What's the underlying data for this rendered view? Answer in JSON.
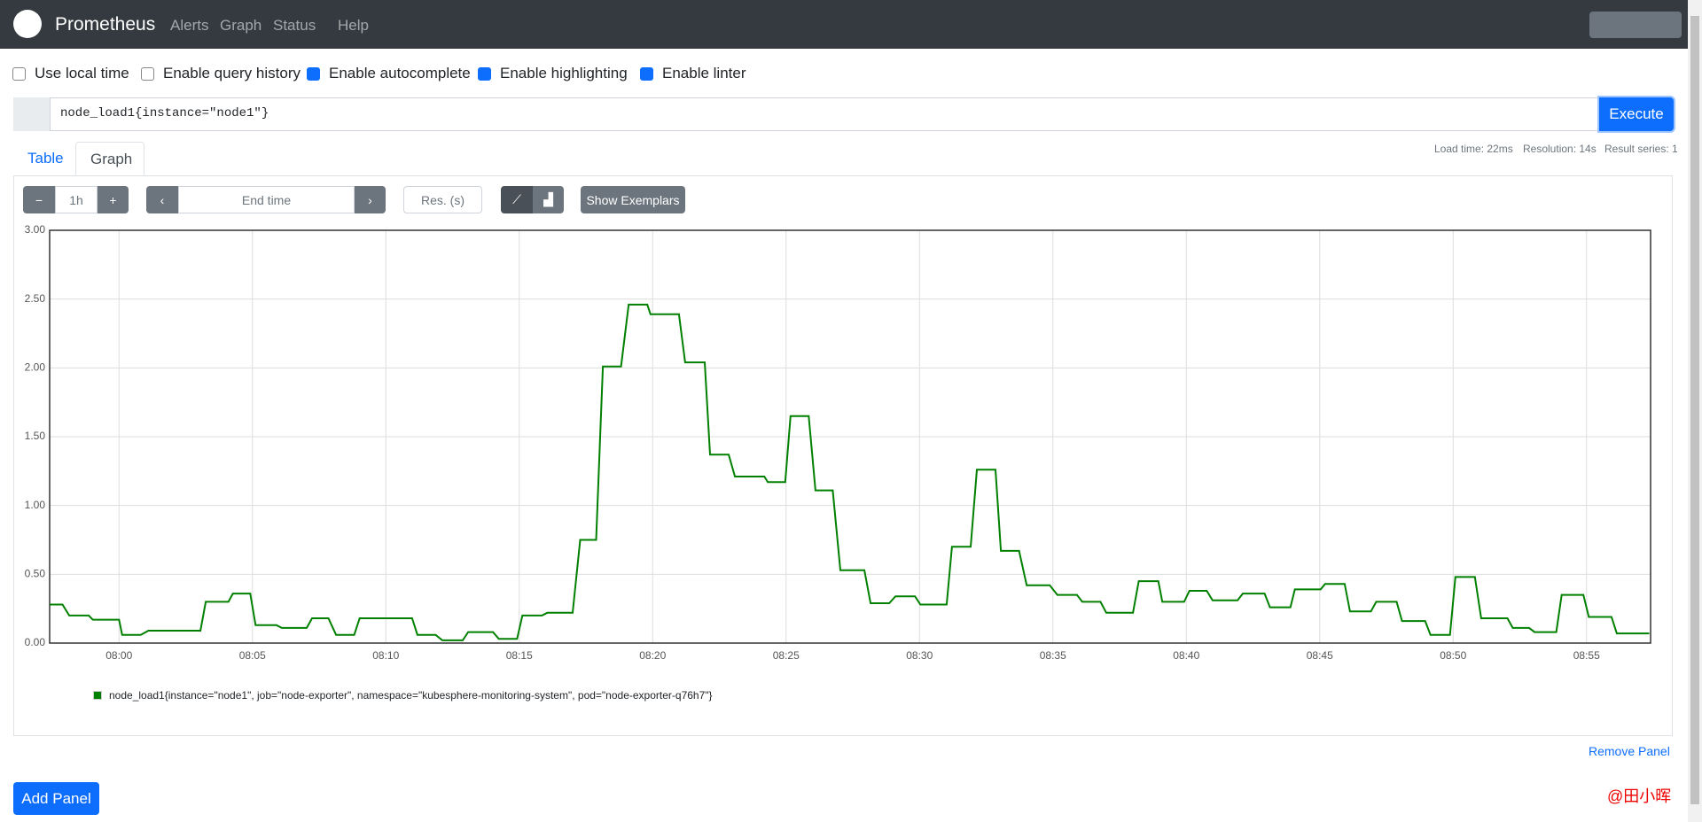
{
  "navbar": {
    "brand": "Prometheus",
    "links": [
      "Alerts",
      "Graph",
      "Status",
      "Help"
    ]
  },
  "options": [
    {
      "label": "Use local time",
      "checked": false
    },
    {
      "label": "Enable query history",
      "checked": false
    },
    {
      "label": "Enable autocomplete",
      "checked": true
    },
    {
      "label": "Enable highlighting",
      "checked": true
    },
    {
      "label": "Enable linter",
      "checked": true
    }
  ],
  "query": "node_load1{instance=\"node1\"}",
  "execute": "Execute",
  "tabs": [
    "Table",
    "Graph"
  ],
  "stats": [
    "Load time: 22ms",
    "Resolution: 14s",
    "Result series: 1"
  ],
  "controls": {
    "range": "1h",
    "end_time": "End time",
    "resolution": "Res. (s)",
    "exemplars": "Show Exemplars"
  },
  "chart_data": {
    "type": "line",
    "x": [
      "07:57:24",
      "07:57:53",
      "07:58:08",
      "07:58:52",
      "07:59:01",
      "08:00:00",
      "08:00:07",
      "08:00:49",
      "08:01:06",
      "08:03:03",
      "08:03:15",
      "08:04:06",
      "08:04:16",
      "08:04:55",
      "08:05:07",
      "08:05:54",
      "08:06:06",
      "08:07:02",
      "08:07:14",
      "08:07:51",
      "08:08:08",
      "08:08:49",
      "08:09:01",
      "08:10:59",
      "08:11:11",
      "08:11:52",
      "08:12:07",
      "08:12:53",
      "08:13:05",
      "08:14:01",
      "08:14:14",
      "08:14:55",
      "08:15:07",
      "08:15:51",
      "08:16:03",
      "08:17:00",
      "08:17:17",
      "08:17:53",
      "08:18:08",
      "08:18:49",
      "08:19:06",
      "08:19:48",
      "08:19:55",
      "08:20:59",
      "08:21:13",
      "08:21:57",
      "08:22:09",
      "08:22:51",
      "08:23:05",
      "08:24:11",
      "08:24:19",
      "08:24:58",
      "08:25:10",
      "08:25:51",
      "08:26:06",
      "08:26:45",
      "08:27:02",
      "08:27:56",
      "08:28:10",
      "08:28:52",
      "08:29:06",
      "08:29:50",
      "08:30:02",
      "08:31:01",
      "08:31:13",
      "08:31:55",
      "08:32:09",
      "08:32:51",
      "08:33:03",
      "08:33:44",
      "08:34:01",
      "08:34:53",
      "08:35:10",
      "08:35:54",
      "08:36:06",
      "08:36:47",
      "08:37:00",
      "08:38:00",
      "08:38:13",
      "08:38:57",
      "08:39:06",
      "08:39:55",
      "08:40:07",
      "08:40:46",
      "08:40:59",
      "08:41:55",
      "08:42:07",
      "08:42:56",
      "08:43:08",
      "08:43:54",
      "08:44:04",
      "08:45:02",
      "08:45:12",
      "08:45:56",
      "08:46:08",
      "08:46:55",
      "08:47:07",
      "08:47:53",
      "08:48:05",
      "08:48:57",
      "08:49:09",
      "08:49:53",
      "08:50:05",
      "08:50:49",
      "08:51:03",
      "08:52:02",
      "08:52:14",
      "08:52:51",
      "08:53:03",
      "08:53:52",
      "08:54:04",
      "08:54:53",
      "08:55:05",
      "08:55:56",
      "08:56:08",
      "08:57:21"
    ],
    "series": [
      {
        "name": "node_load1{instance=\"node1\", job=\"node-exporter\", namespace=\"kubesphere-monitoring-system\", pod=\"node-exporter-q76h7\"}",
        "color": "#008000",
        "values": [
          0.28,
          0.28,
          0.2,
          0.2,
          0.17,
          0.17,
          0.06,
          0.06,
          0.09,
          0.09,
          0.3,
          0.3,
          0.36,
          0.36,
          0.13,
          0.13,
          0.11,
          0.11,
          0.18,
          0.18,
          0.06,
          0.06,
          0.18,
          0.18,
          0.06,
          0.06,
          0.02,
          0.02,
          0.08,
          0.08,
          0.03,
          0.03,
          0.2,
          0.2,
          0.22,
          0.22,
          0.75,
          0.75,
          2.01,
          2.01,
          2.46,
          2.46,
          2.39,
          2.39,
          2.04,
          2.04,
          1.37,
          1.37,
          1.21,
          1.21,
          1.17,
          1.17,
          1.65,
          1.65,
          1.11,
          1.11,
          0.53,
          0.53,
          0.29,
          0.29,
          0.34,
          0.34,
          0.28,
          0.28,
          0.7,
          0.7,
          1.26,
          1.26,
          0.67,
          0.67,
          0.42,
          0.42,
          0.35,
          0.35,
          0.3,
          0.3,
          0.22,
          0.22,
          0.45,
          0.45,
          0.3,
          0.3,
          0.38,
          0.38,
          0.31,
          0.31,
          0.36,
          0.36,
          0.26,
          0.26,
          0.39,
          0.39,
          0.43,
          0.43,
          0.23,
          0.23,
          0.3,
          0.3,
          0.16,
          0.16,
          0.06,
          0.06,
          0.48,
          0.48,
          0.18,
          0.18,
          0.11,
          0.11,
          0.08,
          0.08,
          0.35,
          0.35,
          0.19,
          0.19,
          0.07,
          0.07
        ]
      }
    ],
    "xlim": [
      "07:57:24",
      "08:57:24"
    ],
    "xticks": [
      "08:00",
      "08:05",
      "08:10",
      "08:15",
      "08:20",
      "08:25",
      "08:30",
      "08:35",
      "08:40",
      "08:45",
      "08:50",
      "08:55"
    ],
    "ylim": [
      0,
      3
    ],
    "yticks": [
      {
        "value": 0,
        "label": "0.00"
      },
      {
        "value": 0.5,
        "label": "0.50"
      },
      {
        "value": 1,
        "label": "1.00"
      },
      {
        "value": 1.5,
        "label": "1.50"
      },
      {
        "value": 2,
        "label": "2.00"
      },
      {
        "value": 2.5,
        "label": "2.50"
      },
      {
        "value": 3,
        "label": "3.00"
      }
    ],
    "grid": true
  },
  "remove_panel": "Remove Panel",
  "add_panel": "Add Panel",
  "watermark": "@田小晖"
}
